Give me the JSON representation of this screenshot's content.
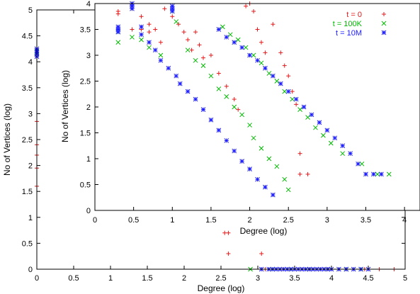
{
  "chart_data": [
    {
      "type": "scatter",
      "xlabel": "Degree (log)",
      "ylabel": "No of Vertices (log)",
      "xlim": [
        0,
        5
      ],
      "ylim": [
        0,
        5
      ],
      "xticks": [
        "0",
        "0.5",
        "1",
        "1.5",
        "2",
        "2.5",
        "3",
        "3.5",
        "4",
        "4.5",
        "5"
      ],
      "yticks": [
        "0",
        "0.5",
        "1",
        "1.5",
        "2",
        "2.5",
        "3",
        "3.5",
        "4",
        "4.5",
        "5"
      ],
      "series": [
        {
          "name": "t = 0",
          "color": "#e41a1c",
          "marker": "plus",
          "points": [
            [
              0,
              2.85
            ],
            [
              0,
              2.4
            ],
            [
              0,
              2.2
            ],
            [
              0,
              1.95
            ],
            [
              0,
              1.6
            ],
            [
              2.55,
              0.7
            ],
            [
              2.6,
              0.7
            ],
            [
              2.6,
              0.3
            ],
            [
              3.05,
              0.3
            ],
            [
              3.1,
              0
            ],
            [
              3.5,
              0
            ],
            [
              3.7,
              0
            ],
            [
              3.95,
              0
            ],
            [
              4.2,
              0
            ],
            [
              4.45,
              0
            ],
            [
              4.65,
              0
            ],
            [
              4.85,
              0
            ]
          ]
        },
        {
          "name": "t = 100K",
          "color": "#00bb00",
          "marker": "x",
          "points": [
            [
              0,
              4.2
            ],
            [
              0,
              4.15
            ],
            [
              2.9,
              0
            ],
            [
              3.2,
              0
            ],
            [
              3.45,
              0
            ],
            [
              3.7,
              0
            ],
            [
              3.95,
              0
            ],
            [
              4.2,
              0
            ],
            [
              4.4,
              0
            ]
          ]
        },
        {
          "name": "t = 10M",
          "color": "#1a1aff",
          "marker": "star",
          "points": [
            [
              0,
              4.25
            ],
            [
              0,
              4.22
            ],
            [
              0,
              4.18
            ],
            [
              0,
              4.15
            ],
            [
              0,
              4.1
            ],
            [
              3.05,
              0
            ],
            [
              3.15,
              0
            ],
            [
              3.2,
              0
            ],
            [
              3.25,
              0
            ],
            [
              3.3,
              0
            ],
            [
              3.35,
              0
            ],
            [
              3.4,
              0
            ],
            [
              3.45,
              0
            ],
            [
              3.5,
              0
            ],
            [
              3.55,
              0
            ],
            [
              3.6,
              0
            ],
            [
              3.65,
              0
            ],
            [
              3.7,
              0
            ],
            [
              3.75,
              0
            ],
            [
              3.8,
              0
            ],
            [
              3.85,
              0
            ],
            [
              3.9,
              0
            ],
            [
              3.95,
              0
            ],
            [
              4.0,
              0
            ],
            [
              4.1,
              0
            ],
            [
              4.2,
              0
            ],
            [
              4.3,
              0
            ],
            [
              4.4,
              0
            ],
            [
              4.5,
              0
            ]
          ]
        }
      ]
    },
    {
      "type": "scatter",
      "xlabel": "Degree (log)",
      "ylabel": "No of Vertices (log)",
      "xlim": [
        0,
        4.2
      ],
      "ylim": [
        0,
        4
      ],
      "xticks": [
        "0",
        "0.5",
        "1",
        "1.5",
        "2",
        "2.5",
        "3",
        "3.5",
        "4"
      ],
      "yticks": [
        "0",
        "0.5",
        "1",
        "1.5",
        "2",
        "2.5",
        "3",
        "3.5",
        "4"
      ],
      "legend_position": "top-right",
      "series": [
        {
          "name": "t = 0",
          "color": "#e41a1c",
          "marker": "plus",
          "points": [
            [
              0.3,
              3.85
            ],
            [
              0.3,
              3.8
            ],
            [
              0.48,
              3.5
            ],
            [
              0.6,
              3.5
            ],
            [
              0.6,
              3.75
            ],
            [
              0.7,
              3.6
            ],
            [
              0.7,
              3.45
            ],
            [
              0.78,
              3.5
            ],
            [
              0.78,
              4.1
            ],
            [
              0.85,
              3.25
            ],
            [
              0.9,
              3.9
            ],
            [
              1.0,
              3.75
            ],
            [
              1.08,
              3.6
            ],
            [
              1.15,
              3.45
            ],
            [
              1.2,
              3.3
            ],
            [
              1.25,
              3.1
            ],
            [
              1.3,
              3.45
            ],
            [
              1.35,
              3.2
            ],
            [
              1.4,
              2.95
            ],
            [
              1.5,
              3.0
            ],
            [
              1.6,
              2.65
            ],
            [
              1.7,
              2.4
            ],
            [
              1.8,
              2.15
            ],
            [
              1.85,
              1.95
            ],
            [
              1.95,
              3.95
            ],
            [
              2.0,
              4.0
            ],
            [
              2.05,
              3.85
            ],
            [
              2.1,
              3.5
            ],
            [
              2.15,
              3.25
            ],
            [
              2.2,
              3.05
            ],
            [
              2.3,
              3.6
            ],
            [
              2.4,
              3.05
            ],
            [
              2.45,
              2.8
            ],
            [
              2.5,
              2.6
            ],
            [
              2.55,
              2.3
            ],
            [
              2.6,
              2.05
            ],
            [
              2.65,
              1.1
            ],
            [
              2.65,
              0.7
            ],
            [
              2.75,
              0.7
            ]
          ]
        },
        {
          "name": "t = 100K",
          "color": "#00bb00",
          "marker": "x",
          "points": [
            [
              0.3,
              3.45
            ],
            [
              0.3,
              3.25
            ],
            [
              0.48,
              3.35
            ],
            [
              0.6,
              3.3
            ],
            [
              0.7,
              3.15
            ],
            [
              0.85,
              3.0
            ],
            [
              1.0,
              3.85
            ],
            [
              1.05,
              3.65
            ],
            [
              1.2,
              3.1
            ],
            [
              1.3,
              2.9
            ],
            [
              1.4,
              2.8
            ],
            [
              1.5,
              2.6
            ],
            [
              1.6,
              2.35
            ],
            [
              1.7,
              2.2
            ],
            [
              1.8,
              2.0
            ],
            [
              1.9,
              1.85
            ],
            [
              2.0,
              1.65
            ],
            [
              2.05,
              1.4
            ],
            [
              2.15,
              1.2
            ],
            [
              2.25,
              1.0
            ],
            [
              2.35,
              0.85
            ],
            [
              2.45,
              0.6
            ],
            [
              2.5,
              0.4
            ],
            [
              1.65,
              3.55
            ],
            [
              1.75,
              3.4
            ],
            [
              1.85,
              3.3
            ],
            [
              1.95,
              3.15
            ],
            [
              2.05,
              3.0
            ],
            [
              2.15,
              2.85
            ],
            [
              2.25,
              2.65
            ],
            [
              2.35,
              2.5
            ],
            [
              2.45,
              2.3
            ],
            [
              2.55,
              2.15
            ],
            [
              2.65,
              1.95
            ],
            [
              2.75,
              1.8
            ],
            [
              2.85,
              1.6
            ],
            [
              2.95,
              1.45
            ],
            [
              3.05,
              1.3
            ],
            [
              3.2,
              1.1
            ],
            [
              3.45,
              0.9
            ],
            [
              3.65,
              0.7
            ],
            [
              3.8,
              0.7
            ]
          ]
        },
        {
          "name": "t = 10M",
          "color": "#1a1aff",
          "marker": "star",
          "points": [
            [
              0.3,
              3.55
            ],
            [
              0.3,
              3.5
            ],
            [
              0.3,
              3.45
            ],
            [
              0.48,
              4.0
            ],
            [
              0.48,
              3.95
            ],
            [
              0.48,
              3.9
            ],
            [
              0.6,
              3.55
            ],
            [
              0.6,
              3.4
            ],
            [
              0.7,
              3.25
            ],
            [
              0.78,
              3.1
            ],
            [
              0.85,
              2.9
            ],
            [
              0.95,
              2.75
            ],
            [
              1.0,
              3.95
            ],
            [
              1.0,
              3.9
            ],
            [
              1.0,
              3.85
            ],
            [
              1.05,
              2.6
            ],
            [
              1.1,
              2.45
            ],
            [
              1.2,
              2.3
            ],
            [
              1.3,
              2.15
            ],
            [
              1.4,
              1.95
            ],
            [
              1.5,
              1.75
            ],
            [
              1.6,
              1.55
            ],
            [
              1.7,
              1.35
            ],
            [
              1.8,
              1.15
            ],
            [
              1.9,
              0.95
            ],
            [
              2.0,
              0.8
            ],
            [
              2.1,
              0.6
            ],
            [
              2.2,
              0.45
            ],
            [
              2.3,
              0.3
            ],
            [
              1.6,
              3.5
            ],
            [
              1.7,
              3.35
            ],
            [
              1.8,
              3.25
            ],
            [
              1.9,
              3.15
            ],
            [
              2.0,
              3.0
            ],
            [
              2.1,
              2.9
            ],
            [
              2.2,
              2.75
            ],
            [
              2.3,
              2.6
            ],
            [
              2.4,
              2.45
            ],
            [
              2.5,
              2.3
            ],
            [
              2.6,
              2.15
            ],
            [
              2.7,
              2.0
            ],
            [
              2.8,
              1.85
            ],
            [
              2.9,
              1.7
            ],
            [
              3.0,
              1.55
            ],
            [
              3.1,
              1.4
            ],
            [
              3.2,
              1.25
            ],
            [
              3.3,
              1.1
            ],
            [
              3.4,
              0.9
            ],
            [
              3.5,
              0.7
            ],
            [
              3.6,
              0.7
            ],
            [
              3.7,
              0.7
            ]
          ]
        }
      ]
    }
  ]
}
